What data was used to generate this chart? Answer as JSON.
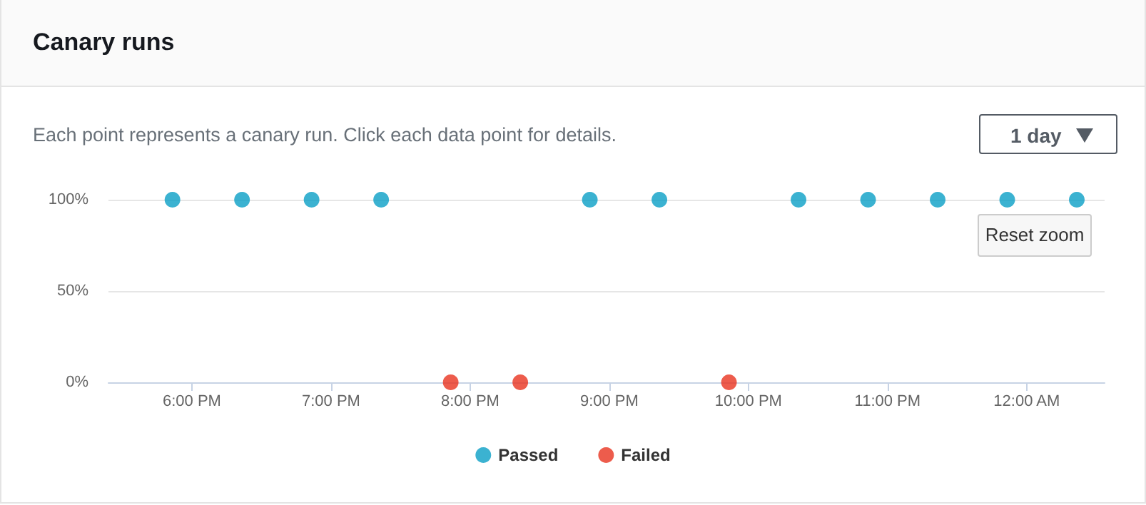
{
  "chart_data": {
    "type": "scatter",
    "title": "Canary runs",
    "subtitle": "Each point represents a canary run. Click each data point for details.",
    "annotations": [
      "1 day",
      "Reset zoom"
    ],
    "series": [
      {
        "name": "Passed",
        "color": "#0a9fc6",
        "x": [
          17.86,
          18.36,
          18.86,
          19.36,
          20.86,
          21.36,
          22.36,
          22.86,
          23.36,
          23.86,
          24.36
        ],
        "values": [
          100,
          100,
          100,
          100,
          100,
          100,
          100,
          100,
          100,
          100,
          100
        ]
      },
      {
        "name": "Failed",
        "color": "#e8331f",
        "x": [
          19.86,
          20.36,
          21.86
        ],
        "values": [
          0,
          0,
          0
        ]
      }
    ],
    "xlim": [
      17.4,
      24.56
    ],
    "xticks": [
      {
        "value": 18,
        "label": "6:00 PM"
      },
      {
        "value": 19,
        "label": "7:00 PM"
      },
      {
        "value": 20,
        "label": "8:00 PM"
      },
      {
        "value": 21,
        "label": "9:00 PM"
      },
      {
        "value": 22,
        "label": "10:00 PM"
      },
      {
        "value": 23,
        "label": "11:00 PM"
      },
      {
        "value": 24,
        "label": "12:00 AM"
      }
    ],
    "ylim": [
      0,
      100
    ],
    "yticks": [
      {
        "value": 0,
        "label": "0%"
      },
      {
        "value": 50,
        "label": "50%"
      },
      {
        "value": 100,
        "label": "100%"
      }
    ],
    "grid": "y",
    "legend": "bottom",
    "marker": "circle"
  }
}
